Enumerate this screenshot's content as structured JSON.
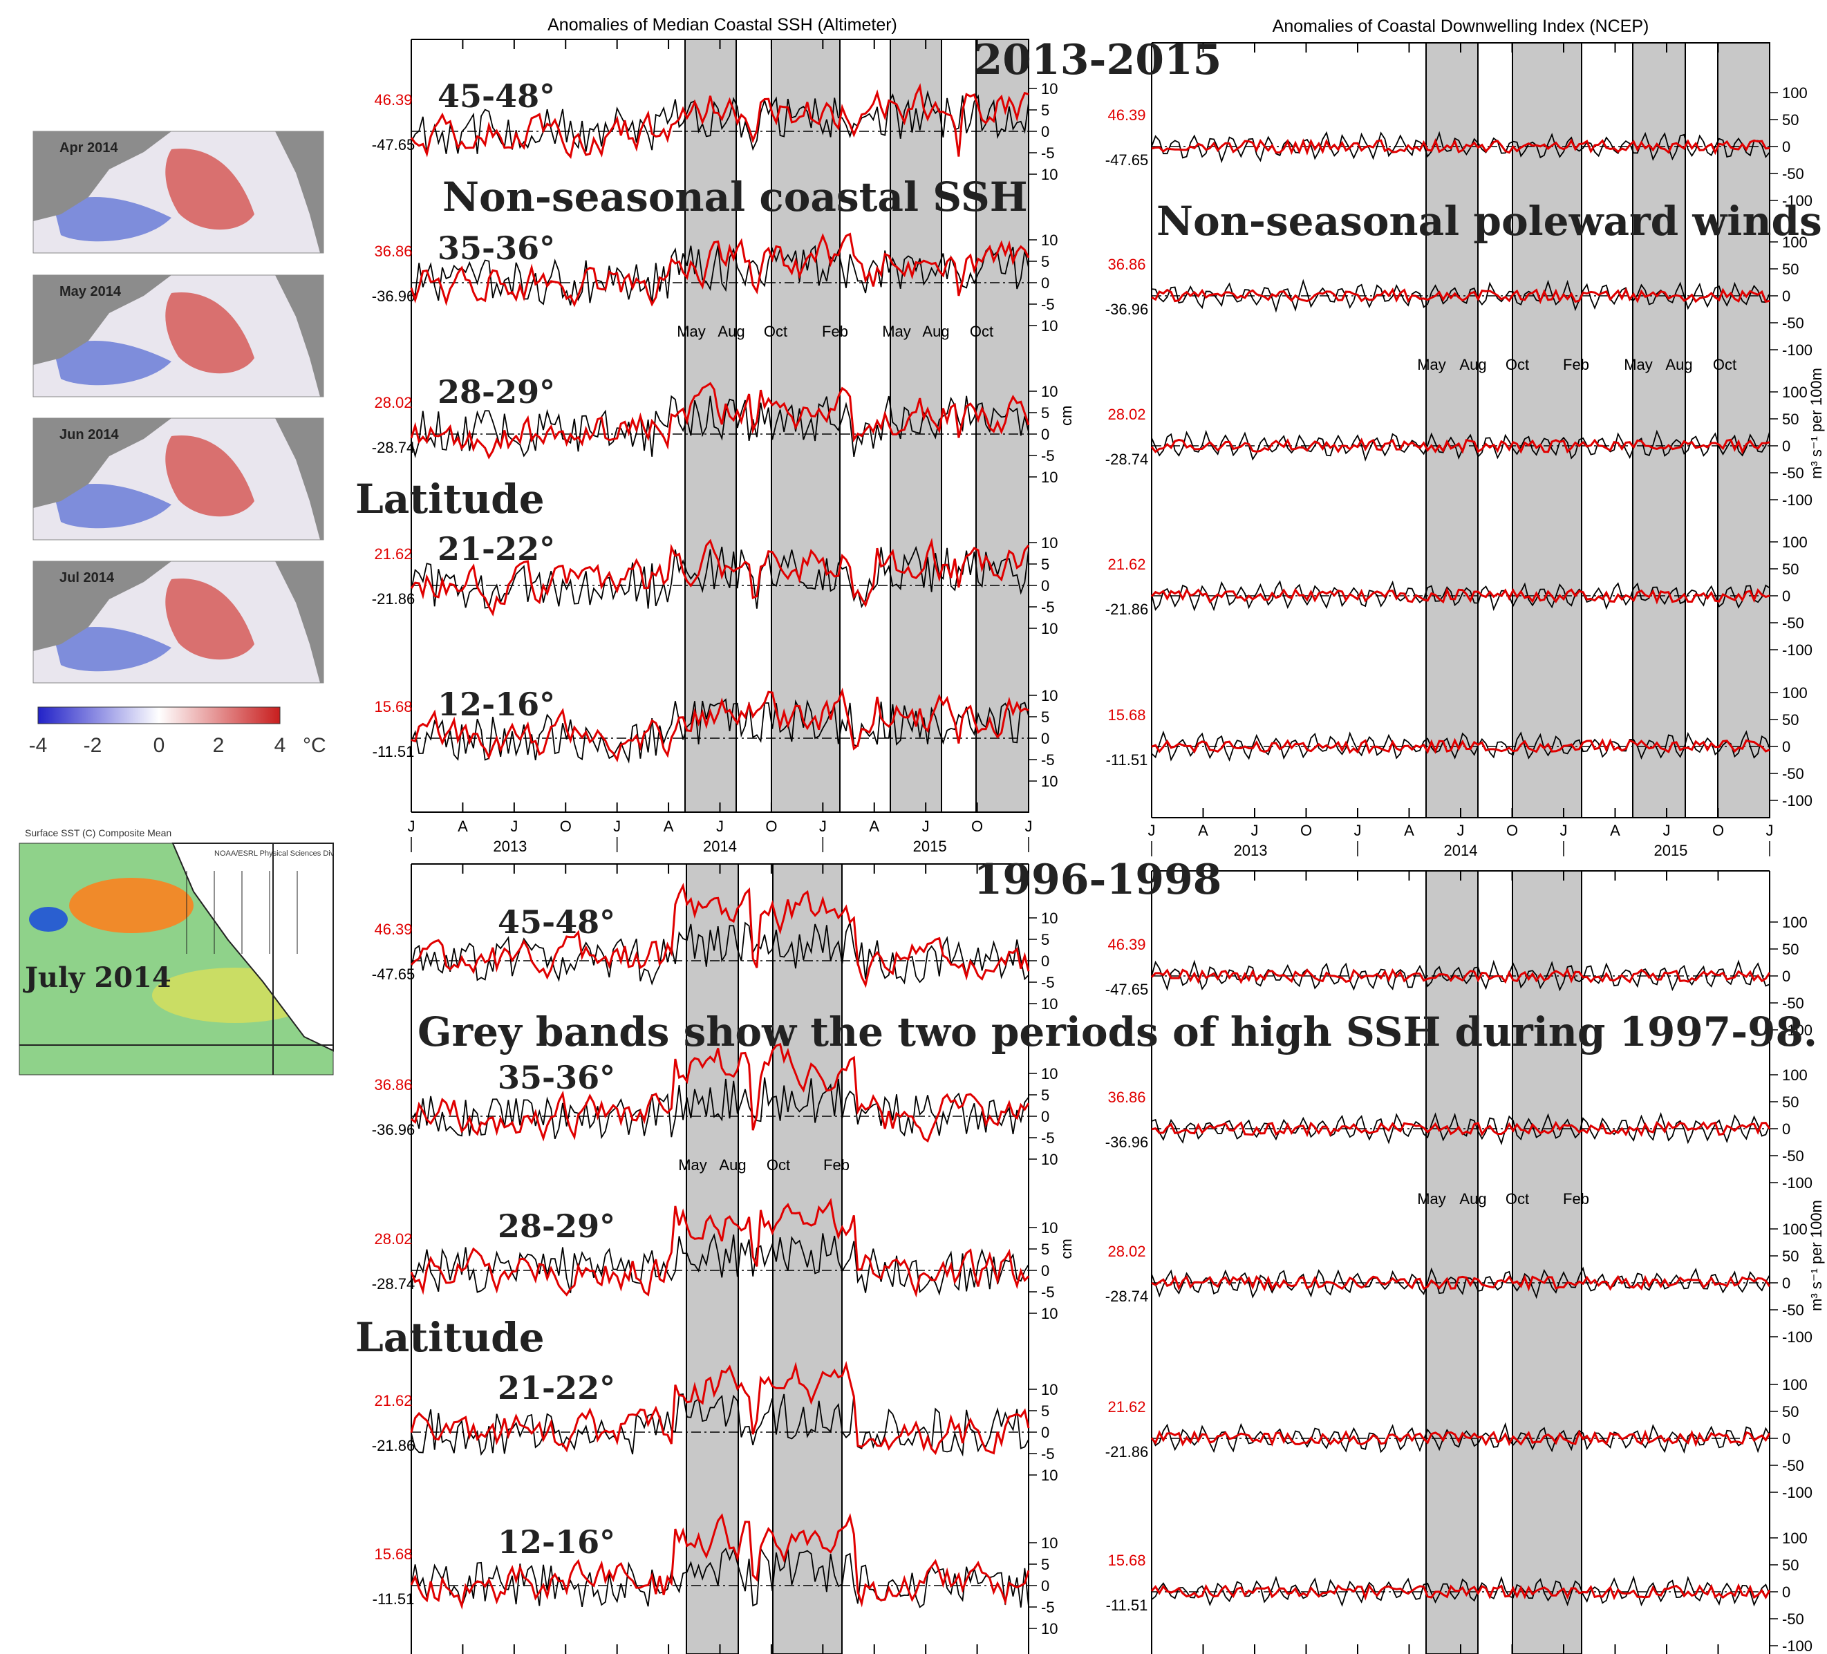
{
  "header": {
    "title_ssh": "Anomalies of Median Coastal SSH (Altimeter)",
    "title_wind": "Anomalies of Coastal Downwelling Index (NCEP)"
  },
  "overlays": {
    "period_2013": "2013-2015",
    "period_1996": "1996-1998",
    "ssh_caption": "Non-seasonal coastal SSH",
    "wind_caption": "Non-seasonal poleward winds",
    "latitude_caption": "Latitude",
    "grey_band_note": "Grey bands show the two periods of high SSH during 1997-98.",
    "sst_map_label": "July 2014",
    "sst_map_header": "Surface SST (C) Composite Mean",
    "sst_map_credit": "NOAA/ESRL Physical Sciences Div"
  },
  "maps": {
    "months": [
      "Apr 2014",
      "May 2014",
      "Jun 2014",
      "Jul 2014"
    ],
    "colorbar_ticks": [
      "-4",
      "-2",
      "0",
      "2",
      "4"
    ],
    "colorbar_unit": "°C"
  },
  "chart_data": [
    {
      "type": "line",
      "title": "Anomalies of Median Coastal SSH (Altimeter)",
      "period": "2013-2015",
      "ylabel": "cm",
      "yticks": [
        "10",
        "5",
        "0",
        "-5",
        "10"
      ],
      "x_ticks": [
        "J",
        "A",
        "J",
        "O",
        "J",
        "A",
        "J",
        "O",
        "J",
        "A",
        "J",
        "O",
        "J"
      ],
      "x_years": [
        "2013",
        "2014",
        "2015"
      ],
      "band_labels": [
        "May",
        "Aug",
        "Oct",
        "Feb",
        "May",
        "Aug",
        "Oct"
      ],
      "grey_bands": [
        [
          "2014-04",
          "2014-07"
        ],
        [
          "2014-10",
          "2015-02"
        ],
        [
          "2015-04",
          "2015-07"
        ],
        [
          "2015-09",
          "2015-12"
        ]
      ],
      "panels": [
        {
          "latitude": "45-48°",
          "top_value": "46.39",
          "bottom_value": "-47.65"
        },
        {
          "latitude": "35-36°",
          "top_value": "36.86",
          "bottom_value": "-36.96"
        },
        {
          "latitude": "28-29°",
          "top_value": "28.02",
          "bottom_value": "-28.74"
        },
        {
          "latitude": "21-22°",
          "top_value": "21.62",
          "bottom_value": "-21.86"
        },
        {
          "latitude": "12-16°",
          "top_value": "15.68",
          "bottom_value": "-11.51"
        }
      ]
    },
    {
      "type": "line",
      "title": "Anomalies of Coastal Downwelling Index (NCEP)",
      "period": "2013-2015",
      "ylabel": "m³ s⁻¹ per 100m",
      "yticks": [
        "100",
        "50",
        "0",
        "-50",
        "-100"
      ],
      "x_ticks": [
        "J",
        "A",
        "J",
        "O",
        "J",
        "A",
        "J",
        "O",
        "J",
        "A",
        "J",
        "O",
        "J"
      ],
      "x_years": [
        "2013",
        "2014",
        "2015"
      ],
      "band_labels": [
        "May",
        "Aug",
        "Oct",
        "Feb",
        "May",
        "Aug",
        "Oct"
      ],
      "panels": [
        {
          "top_value": "46.39",
          "bottom_value": "-47.65"
        },
        {
          "top_value": "36.86",
          "bottom_value": "-36.96"
        },
        {
          "top_value": "28.02",
          "bottom_value": "-28.74"
        },
        {
          "top_value": "21.62",
          "bottom_value": "-21.86"
        },
        {
          "top_value": "15.68",
          "bottom_value": "-11.51"
        }
      ]
    },
    {
      "type": "line",
      "title": "",
      "period": "1996-1998",
      "ylabel": "cm",
      "yticks": [
        "10",
        "5",
        "0",
        "-5",
        "10"
      ],
      "band_labels": [
        "May",
        "Aug",
        "Oct",
        "Feb"
      ],
      "grey_bands": [
        [
          "1997-05",
          "1997-08"
        ],
        [
          "1997-10",
          "1998-02"
        ]
      ],
      "panels": [
        {
          "latitude": "45-48°",
          "top_value": "46.39",
          "bottom_value": "-47.65"
        },
        {
          "latitude": "35-36°",
          "top_value": "36.86",
          "bottom_value": "-36.96"
        },
        {
          "latitude": "28-29°",
          "top_value": "28.02",
          "bottom_value": "-28.74"
        },
        {
          "latitude": "21-22°",
          "top_value": "21.62",
          "bottom_value": "-21.86"
        },
        {
          "latitude": "12-16°",
          "top_value": "15.68",
          "bottom_value": "-11.51"
        }
      ]
    },
    {
      "type": "line",
      "title": "",
      "period": "1996-1998",
      "ylabel": "m³ s⁻¹ per 100m",
      "yticks": [
        "100",
        "50",
        "0",
        "-50",
        "-100"
      ],
      "band_labels": [
        "May",
        "Aug",
        "Oct",
        "Feb"
      ],
      "panels": [
        {
          "top_value": "46.39",
          "bottom_value": "-47.65"
        },
        {
          "top_value": "36.86",
          "bottom_value": "-36.96"
        },
        {
          "top_value": "28.02",
          "bottom_value": "-28.74"
        },
        {
          "top_value": "21.62",
          "bottom_value": "-21.86"
        },
        {
          "top_value": "15.68",
          "bottom_value": "-11.51"
        }
      ]
    }
  ],
  "colors": {
    "anomaly_line": "#000000",
    "highlight_line": "#e00000",
    "grey_band": "#c8c8c8",
    "neg_text": "#000000",
    "pos_text": "#e00000"
  }
}
